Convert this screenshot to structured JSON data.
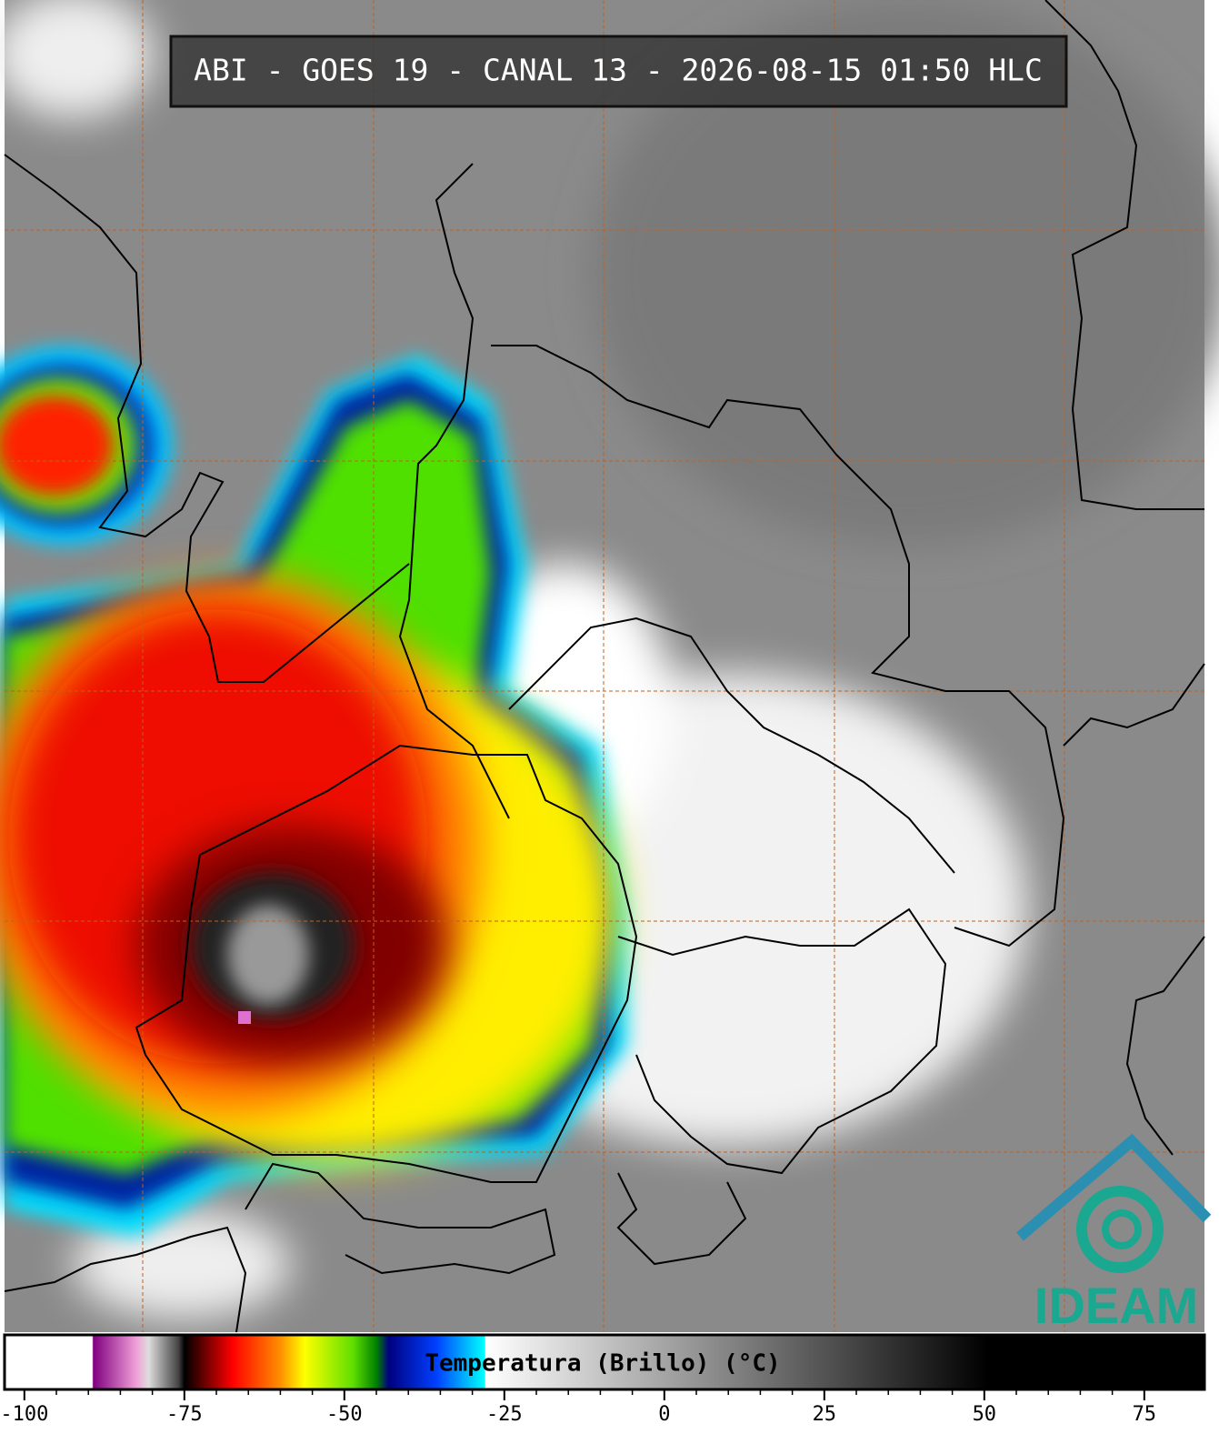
{
  "header": {
    "title": "ABI - GOES 19 - CANAL 13 - 2026-08-15 01:50 HLC"
  },
  "colorbar": {
    "label": "Temperatura (Brillo) (°C)",
    "range": [
      -103.1,
      84.4
    ],
    "ticks": [
      -100,
      -75,
      -50,
      -25,
      0,
      25,
      50,
      75
    ]
  },
  "logo": {
    "text": "IDEAM"
  }
}
